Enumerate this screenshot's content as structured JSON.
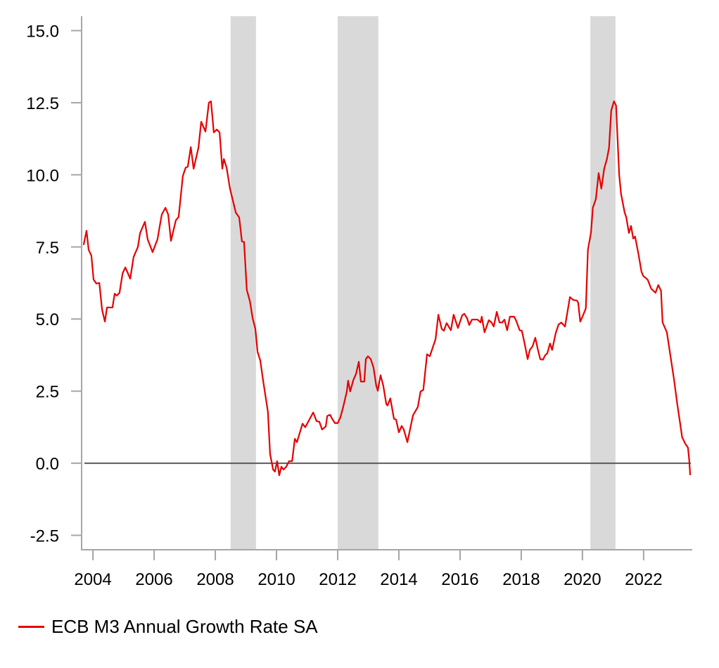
{
  "chart_data": {
    "type": "line",
    "title": "",
    "xlabel": "",
    "ylabel": "",
    "xlim": [
      2003.63,
      2023.59
    ],
    "ylim": [
      -3.0,
      15.5
    ],
    "grid": false,
    "zero_line": true,
    "x_ticks": [
      2004,
      2006,
      2008,
      2010,
      2012,
      2014,
      2016,
      2018,
      2020,
      2022
    ],
    "x_tick_labels": [
      "2004",
      "2006",
      "2008",
      "2010",
      "2012",
      "2014",
      "2016",
      "2018",
      "2020",
      "2022"
    ],
    "y_ticks": [
      15.0,
      12.5,
      10.0,
      7.5,
      5.0,
      2.5,
      0.0,
      -2.5
    ],
    "y_tick_labels": [
      "15.0",
      "12.5",
      "10.0",
      "7.5",
      "5.0",
      "2.5",
      "0.0",
      "-2.5"
    ],
    "shaded_periods": [
      {
        "start": 2008.5,
        "end": 2009.33
      },
      {
        "start": 2012.0,
        "end": 2013.33
      },
      {
        "start": 2020.26,
        "end": 2021.08
      }
    ],
    "shade_color": "#d9d9d9",
    "legend_position": "bottom-left",
    "series": [
      {
        "name": "ECB M3 Annual Growth Rate SA",
        "color": "#e60000",
        "points": [
          [
            2003.7,
            7.59
          ],
          [
            2003.79,
            8.06
          ],
          [
            2003.86,
            7.4
          ],
          [
            2003.95,
            7.2
          ],
          [
            2004.02,
            6.37
          ],
          [
            2004.11,
            6.23
          ],
          [
            2004.21,
            6.25
          ],
          [
            2004.3,
            5.32
          ],
          [
            2004.39,
            4.91
          ],
          [
            2004.46,
            5.4
          ],
          [
            2004.64,
            5.4
          ],
          [
            2004.71,
            5.88
          ],
          [
            2004.78,
            5.81
          ],
          [
            2004.87,
            5.91
          ],
          [
            2004.97,
            6.59
          ],
          [
            2005.06,
            6.79
          ],
          [
            2005.22,
            6.4
          ],
          [
            2005.33,
            7.15
          ],
          [
            2005.47,
            7.5
          ],
          [
            2005.54,
            7.98
          ],
          [
            2005.7,
            8.37
          ],
          [
            2005.79,
            7.76
          ],
          [
            2005.95,
            7.32
          ],
          [
            2006.11,
            7.76
          ],
          [
            2006.25,
            8.62
          ],
          [
            2006.37,
            8.86
          ],
          [
            2006.46,
            8.62
          ],
          [
            2006.55,
            7.71
          ],
          [
            2006.71,
            8.42
          ],
          [
            2006.8,
            8.54
          ],
          [
            2006.94,
            9.96
          ],
          [
            2007.03,
            10.25
          ],
          [
            2007.1,
            10.28
          ],
          [
            2007.2,
            10.96
          ],
          [
            2007.29,
            10.21
          ],
          [
            2007.45,
            10.94
          ],
          [
            2007.54,
            11.84
          ],
          [
            2007.68,
            11.5
          ],
          [
            2007.79,
            12.5
          ],
          [
            2007.86,
            12.55
          ],
          [
            2007.95,
            11.47
          ],
          [
            2008.05,
            11.57
          ],
          [
            2008.14,
            11.47
          ],
          [
            2008.23,
            10.21
          ],
          [
            2008.28,
            10.55
          ],
          [
            2008.37,
            10.25
          ],
          [
            2008.48,
            9.52
          ],
          [
            2008.67,
            8.69
          ],
          [
            2008.78,
            8.52
          ],
          [
            2008.87,
            7.69
          ],
          [
            2008.94,
            7.67
          ],
          [
            2009.03,
            6.01
          ],
          [
            2009.13,
            5.62
          ],
          [
            2009.22,
            5.03
          ],
          [
            2009.31,
            4.66
          ],
          [
            2009.38,
            3.86
          ],
          [
            2009.47,
            3.56
          ],
          [
            2009.56,
            2.88
          ],
          [
            2009.66,
            2.2
          ],
          [
            2009.72,
            1.78
          ],
          [
            2009.79,
            0.32
          ],
          [
            2009.89,
            -0.22
          ],
          [
            2009.95,
            -0.29
          ],
          [
            2010.02,
            0.07
          ],
          [
            2010.09,
            -0.42
          ],
          [
            2010.16,
            -0.12
          ],
          [
            2010.23,
            -0.22
          ],
          [
            2010.32,
            -0.12
          ],
          [
            2010.41,
            0.07
          ],
          [
            2010.51,
            0.07
          ],
          [
            2010.6,
            0.85
          ],
          [
            2010.67,
            0.73
          ],
          [
            2010.85,
            1.37
          ],
          [
            2010.94,
            1.25
          ],
          [
            2011.2,
            1.76
          ],
          [
            2011.31,
            1.46
          ],
          [
            2011.4,
            1.44
          ],
          [
            2011.49,
            1.17
          ],
          [
            2011.61,
            1.27
          ],
          [
            2011.66,
            1.64
          ],
          [
            2011.75,
            1.68
          ],
          [
            2011.82,
            1.54
          ],
          [
            2011.91,
            1.39
          ],
          [
            2012.0,
            1.39
          ],
          [
            2012.09,
            1.59
          ],
          [
            2012.18,
            1.95
          ],
          [
            2012.3,
            2.49
          ],
          [
            2012.34,
            2.86
          ],
          [
            2012.41,
            2.49
          ],
          [
            2012.51,
            2.88
          ],
          [
            2012.6,
            3.1
          ],
          [
            2012.69,
            3.52
          ],
          [
            2012.76,
            2.83
          ],
          [
            2012.87,
            2.83
          ],
          [
            2012.92,
            3.61
          ],
          [
            2012.99,
            3.71
          ],
          [
            2013.08,
            3.61
          ],
          [
            2013.17,
            3.32
          ],
          [
            2013.26,
            2.69
          ],
          [
            2013.31,
            2.51
          ],
          [
            2013.4,
            3.05
          ],
          [
            2013.49,
            2.69
          ],
          [
            2013.59,
            2.05
          ],
          [
            2013.63,
            2.0
          ],
          [
            2013.72,
            2.25
          ],
          [
            2013.84,
            1.54
          ],
          [
            2013.91,
            1.51
          ],
          [
            2014.0,
            1.07
          ],
          [
            2014.09,
            1.29
          ],
          [
            2014.16,
            1.17
          ],
          [
            2014.28,
            0.73
          ],
          [
            2014.46,
            1.66
          ],
          [
            2014.62,
            1.95
          ],
          [
            2014.71,
            2.49
          ],
          [
            2014.8,
            2.54
          ],
          [
            2014.92,
            3.78
          ],
          [
            2015.01,
            3.71
          ],
          [
            2015.2,
            4.3
          ],
          [
            2015.29,
            5.15
          ],
          [
            2015.4,
            4.66
          ],
          [
            2015.47,
            4.59
          ],
          [
            2015.56,
            4.86
          ],
          [
            2015.7,
            4.61
          ],
          [
            2015.79,
            5.15
          ],
          [
            2015.93,
            4.69
          ],
          [
            2016.07,
            5.13
          ],
          [
            2016.14,
            5.18
          ],
          [
            2016.23,
            5.03
          ],
          [
            2016.3,
            4.79
          ],
          [
            2016.39,
            4.98
          ],
          [
            2016.57,
            4.98
          ],
          [
            2016.67,
            4.88
          ],
          [
            2016.71,
            5.08
          ],
          [
            2016.8,
            4.54
          ],
          [
            2016.94,
            4.96
          ],
          [
            2017.03,
            4.88
          ],
          [
            2017.1,
            4.74
          ],
          [
            2017.2,
            5.25
          ],
          [
            2017.29,
            4.88
          ],
          [
            2017.38,
            4.88
          ],
          [
            2017.45,
            4.98
          ],
          [
            2017.54,
            4.61
          ],
          [
            2017.63,
            5.08
          ],
          [
            2017.77,
            5.08
          ],
          [
            2017.84,
            4.93
          ],
          [
            2017.95,
            4.61
          ],
          [
            2018.02,
            4.59
          ],
          [
            2018.11,
            4.15
          ],
          [
            2018.21,
            3.61
          ],
          [
            2018.28,
            3.93
          ],
          [
            2018.37,
            4.05
          ],
          [
            2018.46,
            4.35
          ],
          [
            2018.53,
            4.0
          ],
          [
            2018.62,
            3.61
          ],
          [
            2018.71,
            3.59
          ],
          [
            2018.78,
            3.74
          ],
          [
            2018.85,
            3.81
          ],
          [
            2018.94,
            4.15
          ],
          [
            2019.01,
            3.93
          ],
          [
            2019.13,
            4.52
          ],
          [
            2019.22,
            4.81
          ],
          [
            2019.31,
            4.88
          ],
          [
            2019.43,
            4.74
          ],
          [
            2019.59,
            5.76
          ],
          [
            2019.7,
            5.66
          ],
          [
            2019.82,
            5.64
          ],
          [
            2019.86,
            5.57
          ],
          [
            2019.93,
            4.91
          ],
          [
            2020.02,
            5.13
          ],
          [
            2020.11,
            5.37
          ],
          [
            2020.18,
            7.4
          ],
          [
            2020.28,
            8.01
          ],
          [
            2020.34,
            8.86
          ],
          [
            2020.44,
            9.16
          ],
          [
            2020.53,
            10.06
          ],
          [
            2020.62,
            9.52
          ],
          [
            2020.71,
            10.21
          ],
          [
            2020.8,
            10.55
          ],
          [
            2020.87,
            10.94
          ],
          [
            2020.94,
            12.23
          ],
          [
            2021.03,
            12.55
          ],
          [
            2021.1,
            12.4
          ],
          [
            2021.2,
            10.01
          ],
          [
            2021.26,
            9.35
          ],
          [
            2021.38,
            8.69
          ],
          [
            2021.43,
            8.54
          ],
          [
            2021.52,
            7.98
          ],
          [
            2021.59,
            8.23
          ],
          [
            2021.66,
            7.79
          ],
          [
            2021.72,
            7.86
          ],
          [
            2021.84,
            7.2
          ],
          [
            2021.93,
            6.64
          ],
          [
            2021.99,
            6.49
          ],
          [
            2022.13,
            6.37
          ],
          [
            2022.25,
            6.05
          ],
          [
            2022.39,
            5.91
          ],
          [
            2022.48,
            6.18
          ],
          [
            2022.57,
            5.98
          ],
          [
            2022.62,
            4.88
          ],
          [
            2022.76,
            4.54
          ],
          [
            2022.99,
            2.93
          ],
          [
            2023.1,
            2.05
          ],
          [
            2023.2,
            1.34
          ],
          [
            2023.26,
            0.9
          ],
          [
            2023.36,
            0.68
          ],
          [
            2023.45,
            0.54
          ],
          [
            2023.49,
            0.1
          ],
          [
            2023.52,
            -0.39
          ]
        ]
      }
    ]
  },
  "legend": {
    "label": "ECB M3 Annual Growth Rate SA",
    "color": "#e60000"
  }
}
